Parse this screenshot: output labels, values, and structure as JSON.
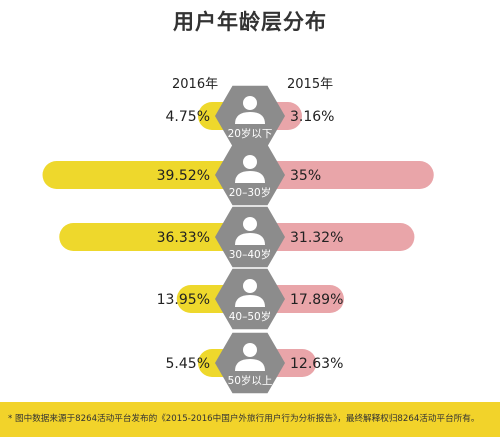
{
  "title": "用户年龄层分布",
  "footnote": "* 图中数据来源于8264活动平台发布的《2015-2016中国户外旅行用户行为分析报告》，最终解释权归8264活动平台所有。",
  "colors": {
    "left": "#eed82c",
    "right": "#e9a5a9",
    "icon_bg": "#8c8c8c",
    "icon_fg": "#ffffff",
    "footnote_bg": "#f2d32a"
  },
  "icon": "person-icon",
  "chart_data": {
    "type": "bar",
    "orientation": "horizontal-butterfly",
    "title": "用户年龄层分布",
    "categories": [
      "20岁以下",
      "20–30岁",
      "30–40岁",
      "40–50岁",
      "50岁以上"
    ],
    "series": [
      {
        "name": "2016年",
        "side": "left",
        "values": [
          4.75,
          39.52,
          36.33,
          13.95,
          5.45
        ],
        "labels": [
          "4.75%",
          "39.52%",
          "36.33%",
          "13.95%",
          "5.45%"
        ]
      },
      {
        "name": "2015年",
        "side": "right",
        "values": [
          3.16,
          35,
          31.32,
          17.89,
          12.63
        ],
        "labels": [
          "3.16%",
          "35%",
          "31.32%",
          "17.89%",
          "12.63%"
        ]
      }
    ],
    "unit": "%",
    "xlim": [
      0,
      40
    ]
  }
}
